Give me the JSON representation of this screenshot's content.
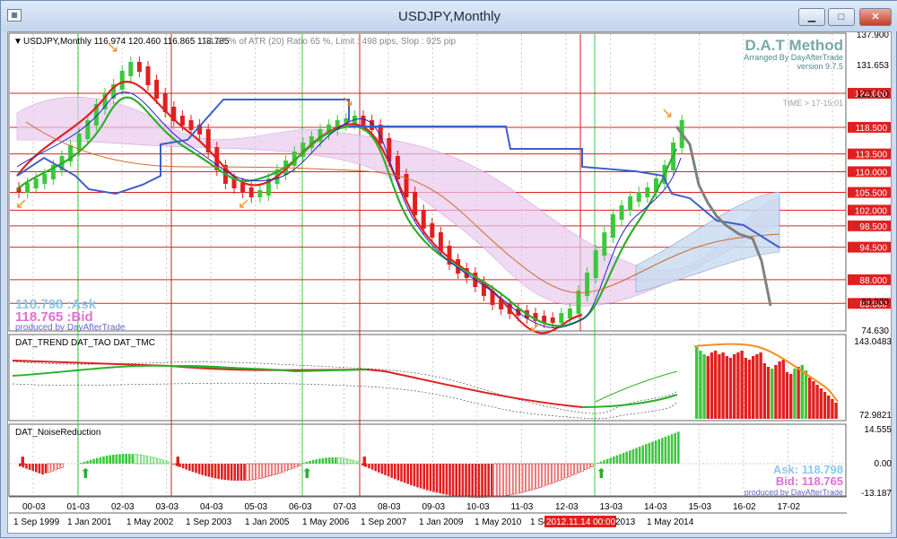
{
  "window": {
    "title": "USDJPY,Monthly",
    "minimize_label": "▁",
    "maximize_label": "□",
    "close_label": "✕"
  },
  "header": {
    "symbol_info": "USDJPY,Monthly  116.974 120.460 116.865 118.785",
    "atr_info": "24.27 % of ATR (20)  Ratio  65 %, Limit : 498 pips, Slop : 925 pip",
    "brand_title": "D.A.T Method",
    "brand_subtitle": "Arranged By DayAfterTrade",
    "brand_version": "version 9.7.5",
    "time_label": "TIME > 17-15:01"
  },
  "quote": {
    "ask": "118.798 :Ask",
    "bid": "118.765 :Bid",
    "producer": "produced by DayAfterTrade"
  },
  "quote_bottom": {
    "ask": "Ask: 118.798",
    "bid": "Bid: 118.765",
    "producer": "produced by DayAfterTrade"
  },
  "panels": {
    "indicator1": "DAT_TREND  DAT_TAO  DAT_TMC",
    "indicator2": "DAT_NoiseReduction"
  },
  "price_axis": [
    "137.900",
    "131.653",
    "125.170",
    "118.500",
    "113.500",
    "110.000",
    "105.500",
    "102.000",
    "98.500",
    "94.500",
    "88.000",
    "83.000",
    "80.900",
    "74.630"
  ],
  "hlines": [
    {
      "label": "124.000",
      "pct": 0.2
    },
    {
      "label": "118.500",
      "pct": 0.315
    },
    {
      "label": "113.500",
      "pct": 0.405
    },
    {
      "label": "110.000",
      "pct": 0.465
    },
    {
      "label": "105.500",
      "pct": 0.535
    },
    {
      "label": "102.000",
      "pct": 0.595
    },
    {
      "label": "98.500",
      "pct": 0.648
    },
    {
      "label": "94.500",
      "pct": 0.72
    },
    {
      "label": "88.000",
      "pct": 0.83
    },
    {
      "label": "83.000",
      "pct": 0.91
    }
  ],
  "ind1_axis": [
    "143.0483",
    "72.9821"
  ],
  "ind2_axis": [
    "14.555",
    "0.00",
    "-13.187"
  ],
  "period_labels": [
    "00-03",
    "01-03",
    "02-03",
    "03-03",
    "04-03",
    "05-03",
    "06-03",
    "07-03",
    "08-03",
    "09-03",
    "10-03",
    "11-03",
    "12-03",
    "13-03",
    "14-03",
    "15-03",
    "16-02",
    "17-02"
  ],
  "date_labels": [
    "1 Sep 1999",
    "1 Jan 2001",
    "1 May 2002",
    "1 Sep 2003",
    "1 Jan 2005",
    "1 May 2006",
    "1 Sep 2007",
    "1 Jan 2009",
    "1 May 2010",
    "1 Sep",
    "2012.11.14 00:00",
    "2013",
    "1 May 2014"
  ],
  "colors": {
    "up": "#3cc83c",
    "down": "#e02020",
    "level": "#e02020",
    "kijun": "#3f5fc8",
    "cloud": "#c83cc8"
  }
}
